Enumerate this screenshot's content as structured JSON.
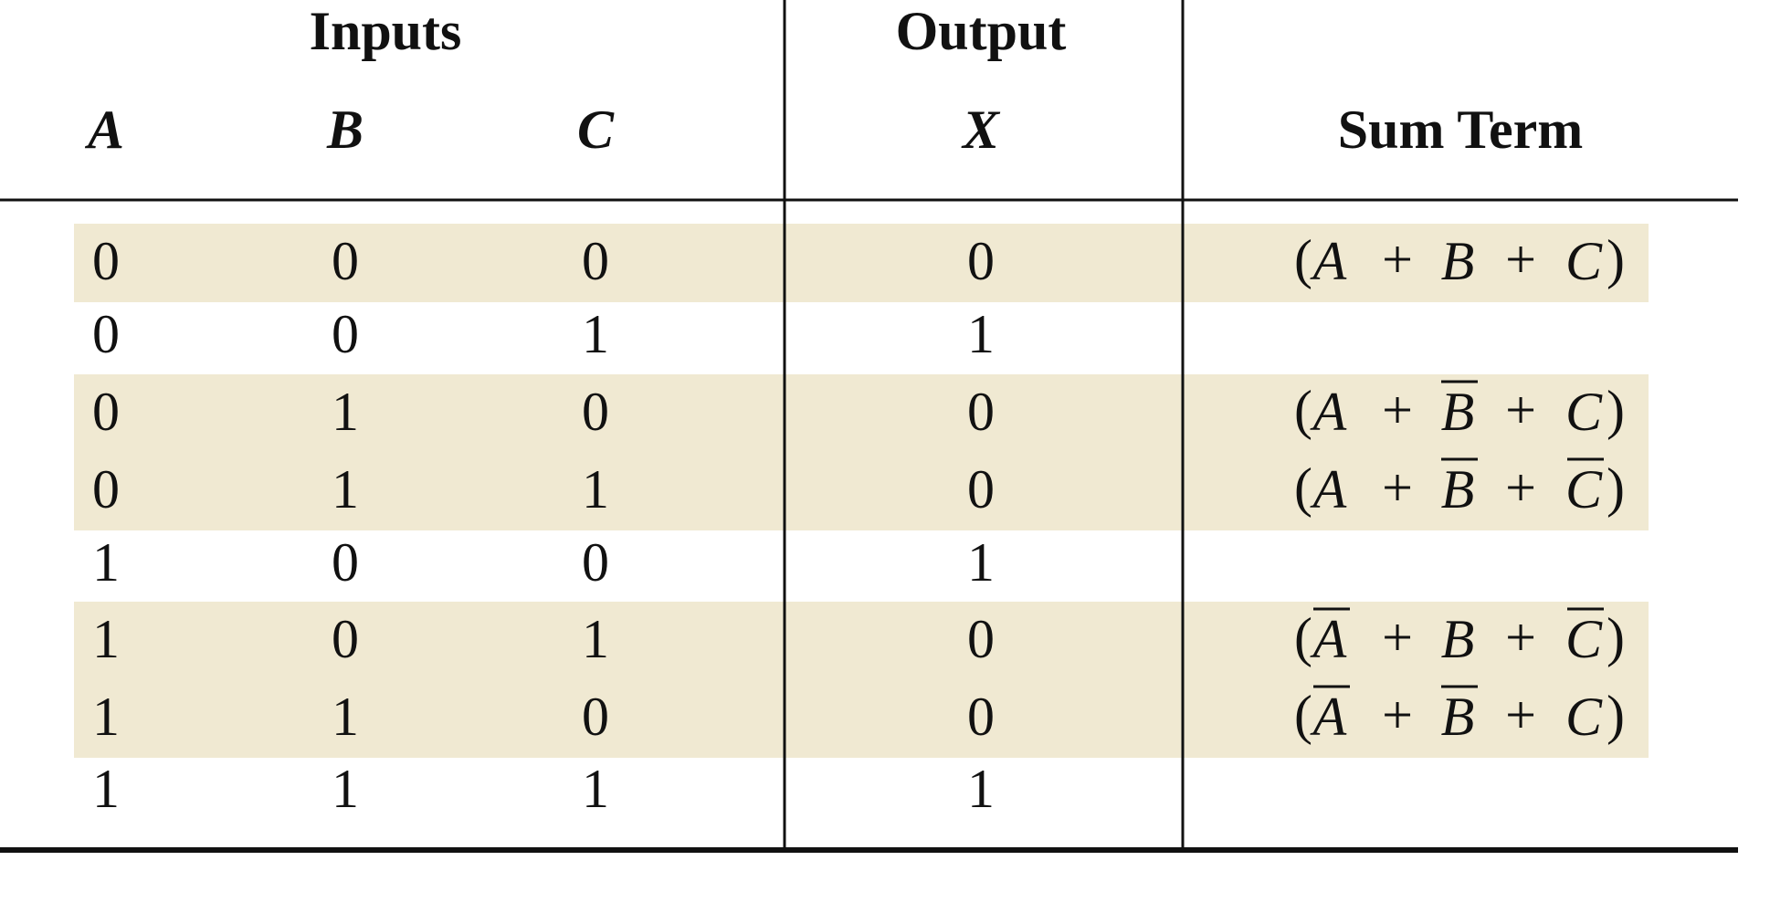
{
  "table": {
    "group_headers": {
      "inputs": "Inputs",
      "output": "Output"
    },
    "columns": [
      "A",
      "B",
      "C",
      "X",
      "Sum Term"
    ],
    "symbols": {
      "open": "(",
      "plus": "+",
      "close": ")"
    },
    "highlight_color": "#f0e9d2",
    "rows": [
      {
        "inputs": [
          0,
          0,
          0
        ],
        "output": 0,
        "sum_term": [
          {
            "var": "A",
            "complement": false
          },
          {
            "var": "B",
            "complement": false
          },
          {
            "var": "C",
            "complement": false
          }
        ]
      },
      {
        "inputs": [
          0,
          0,
          1
        ],
        "output": 1,
        "sum_term": null
      },
      {
        "inputs": [
          0,
          1,
          0
        ],
        "output": 0,
        "sum_term": [
          {
            "var": "A",
            "complement": false
          },
          {
            "var": "B",
            "complement": true
          },
          {
            "var": "C",
            "complement": false
          }
        ]
      },
      {
        "inputs": [
          0,
          1,
          1
        ],
        "output": 0,
        "sum_term": [
          {
            "var": "A",
            "complement": false
          },
          {
            "var": "B",
            "complement": true
          },
          {
            "var": "C",
            "complement": true
          }
        ]
      },
      {
        "inputs": [
          1,
          0,
          0
        ],
        "output": 1,
        "sum_term": null
      },
      {
        "inputs": [
          1,
          0,
          1
        ],
        "output": 0,
        "sum_term": [
          {
            "var": "A",
            "complement": true
          },
          {
            "var": "B",
            "complement": false
          },
          {
            "var": "C",
            "complement": true
          }
        ]
      },
      {
        "inputs": [
          1,
          1,
          0
        ],
        "output": 0,
        "sum_term": [
          {
            "var": "A",
            "complement": true
          },
          {
            "var": "B",
            "complement": true
          },
          {
            "var": "C",
            "complement": false
          }
        ]
      },
      {
        "inputs": [
          1,
          1,
          1
        ],
        "output": 1,
        "sum_term": null
      }
    ]
  }
}
